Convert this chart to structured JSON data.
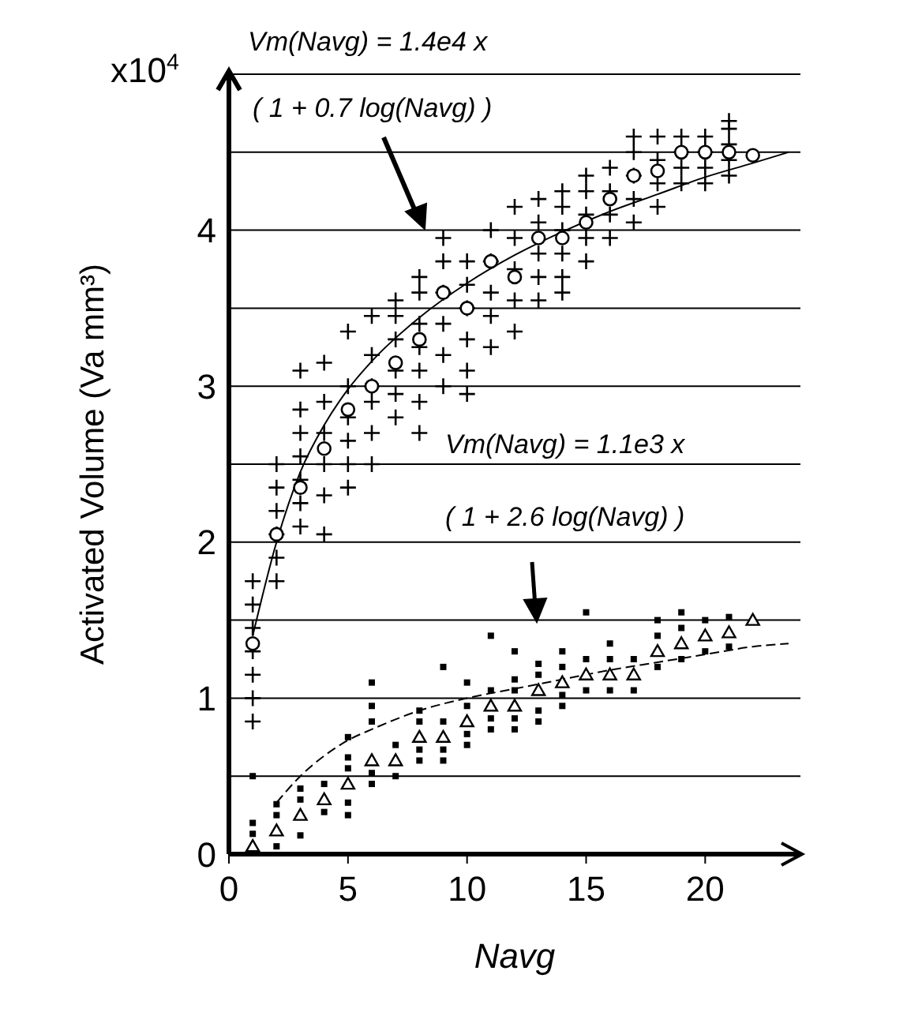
{
  "chart_data": {
    "type": "scatter",
    "xlabel": "Navg",
    "ylabel": "Activated Volume (Va mm³)",
    "annotations": [
      "x10$^{4}$",
      "Vm(Navg) = 1.4e4 x",
      "( 1 + 0.7 log(Navg) )",
      "Vm(Navg) = 1.1e3 x",
      "( 1 + 2.6 log(Navg) )"
    ],
    "xlim": [
      0,
      24
    ],
    "xticks": [
      0,
      5,
      10,
      15,
      20
    ],
    "ylim": [
      0,
      5
    ],
    "yticks": [
      0,
      {
        "value": 0.5,
        "label": null
      },
      1,
      {
        "value": 1.5,
        "label": null
      },
      2,
      {
        "value": 2.5,
        "label": null
      },
      3,
      {
        "value": 3.5,
        "label": null
      },
      4,
      {
        "value": 4.5,
        "label": null
      }
    ],
    "grid": "y",
    "legend": false,
    "series": [
      {
        "marker": "cross",
        "color": "#000000",
        "x": [
          1,
          1,
          1,
          1,
          1,
          1,
          1,
          2,
          2,
          2,
          2,
          2,
          2,
          3,
          3,
          3,
          3,
          3,
          3,
          3,
          4,
          4,
          4,
          4,
          4,
          4,
          5,
          5,
          5,
          5,
          5,
          5,
          6,
          6,
          6,
          6,
          6,
          6,
          7,
          7,
          7,
          7,
          7,
          7,
          8,
          8,
          8,
          8,
          8,
          8,
          8,
          9,
          9,
          9,
          9,
          9,
          9,
          10,
          10,
          10,
          10,
          10,
          10,
          11,
          11,
          11,
          11,
          11,
          12,
          12,
          12,
          12,
          12,
          13,
          13,
          13,
          13,
          13,
          14,
          14,
          14,
          14,
          14,
          14,
          15,
          15,
          15,
          15,
          15,
          16,
          16,
          16,
          16,
          17,
          17,
          17,
          17,
          17,
          18,
          18,
          18,
          18,
          19,
          19,
          19,
          19,
          20,
          20,
          20,
          20,
          21,
          21,
          21,
          21,
          21
        ],
        "values": [
          0.85,
          1.0,
          1.15,
          1.3,
          1.45,
          1.6,
          1.75,
          1.75,
          1.9,
          2.05,
          2.2,
          2.35,
          2.5,
          2.1,
          2.25,
          2.4,
          2.55,
          2.7,
          2.85,
          3.1,
          2.05,
          2.3,
          2.5,
          2.7,
          2.9,
          3.15,
          2.35,
          2.5,
          2.65,
          2.8,
          3.0,
          3.35,
          2.5,
          2.7,
          2.9,
          3.0,
          3.2,
          3.45,
          2.8,
          2.95,
          3.1,
          3.3,
          3.45,
          3.55,
          2.7,
          2.9,
          3.1,
          3.25,
          3.4,
          3.6,
          3.7,
          3.0,
          3.2,
          3.4,
          3.6,
          3.8,
          3.95,
          2.95,
          3.1,
          3.3,
          3.5,
          3.65,
          3.8,
          3.25,
          3.45,
          3.6,
          3.8,
          4.0,
          3.35,
          3.55,
          3.75,
          3.95,
          4.15,
          3.55,
          3.7,
          3.85,
          4.05,
          4.2,
          3.6,
          3.7,
          3.85,
          4.0,
          4.15,
          4.25,
          3.8,
          3.95,
          4.1,
          4.25,
          4.35,
          3.95,
          4.1,
          4.25,
          4.4,
          4.05,
          4.2,
          4.35,
          4.5,
          4.6,
          4.15,
          4.3,
          4.45,
          4.6,
          4.3,
          4.4,
          4.5,
          4.6,
          4.3,
          4.4,
          4.5,
          4.6,
          4.35,
          4.45,
          4.55,
          4.65,
          4.7
        ]
      },
      {
        "marker": "circle",
        "color": "#000000",
        "x": [
          1,
          2,
          3,
          4,
          5,
          6,
          7,
          8,
          9,
          10,
          11,
          12,
          13,
          14,
          15,
          16,
          17,
          18,
          19,
          20,
          21,
          22
        ],
        "values": [
          1.35,
          2.05,
          2.35,
          2.6,
          2.85,
          3.0,
          3.15,
          3.3,
          3.6,
          3.5,
          3.8,
          3.7,
          3.95,
          3.95,
          4.05,
          4.2,
          4.35,
          4.38,
          4.5,
          4.5,
          4.5,
          4.48
        ]
      },
      {
        "type": "line",
        "marker": "none",
        "line_style": "solid",
        "color": "#000000",
        "x": [
          1,
          2,
          3,
          4,
          5,
          6,
          8,
          10,
          12,
          14,
          16,
          18,
          20,
          22,
          23.5
        ],
        "values": [
          1.4,
          2.0,
          2.45,
          2.75,
          2.98,
          3.16,
          3.44,
          3.66,
          3.84,
          3.99,
          4.12,
          4.23,
          4.34,
          4.43,
          4.5
        ]
      },
      {
        "marker": "square",
        "color": "#000000",
        "x": [
          1,
          1,
          1,
          2,
          2,
          2,
          3,
          3,
          3,
          4,
          4,
          5,
          5,
          5,
          5,
          5,
          6,
          6,
          6,
          6,
          6,
          7,
          7,
          8,
          8,
          8,
          8,
          9,
          9,
          9,
          9,
          10,
          10,
          10,
          10,
          11,
          11,
          11,
          11,
          12,
          12,
          12,
          12,
          12,
          13,
          13,
          13,
          13,
          14,
          14,
          14,
          14,
          15,
          15,
          15,
          16,
          16,
          16,
          17,
          17,
          18,
          18,
          18,
          19,
          19,
          19,
          20,
          20,
          21,
          21
        ],
        "values": [
          0.13,
          0.2,
          0.5,
          0.05,
          0.25,
          0.32,
          0.12,
          0.35,
          0.42,
          0.27,
          0.45,
          0.25,
          0.33,
          0.55,
          0.62,
          0.75,
          0.45,
          0.52,
          0.85,
          0.95,
          1.1,
          0.5,
          0.7,
          0.6,
          0.67,
          0.85,
          0.92,
          0.6,
          0.67,
          0.85,
          1.2,
          0.7,
          0.77,
          0.95,
          1.1,
          0.8,
          0.87,
          1.05,
          1.4,
          0.8,
          0.87,
          1.05,
          1.12,
          1.3,
          0.85,
          0.92,
          1.15,
          1.22,
          0.95,
          1.02,
          1.2,
          1.3,
          1.05,
          1.25,
          1.55,
          1.05,
          1.25,
          1.35,
          1.05,
          1.25,
          1.2,
          1.4,
          1.5,
          1.25,
          1.45,
          1.55,
          1.3,
          1.5,
          1.33,
          1.52
        ]
      },
      {
        "marker": "triangle",
        "color": "#000000",
        "x": [
          1,
          2,
          3,
          4,
          5,
          6,
          7,
          8,
          9,
          10,
          11,
          12,
          13,
          14,
          15,
          16,
          17,
          18,
          19,
          20,
          21,
          22
        ],
        "values": [
          0.05,
          0.15,
          0.25,
          0.35,
          0.45,
          0.6,
          0.6,
          0.75,
          0.75,
          0.85,
          0.95,
          0.95,
          1.05,
          1.1,
          1.15,
          1.15,
          1.15,
          1.3,
          1.35,
          1.4,
          1.42,
          1.5
        ]
      },
      {
        "type": "line",
        "marker": "none",
        "line_style": "dashed",
        "color": "#000000",
        "x": [
          2,
          3,
          4,
          5,
          6,
          8,
          10,
          12,
          14,
          16,
          18,
          20,
          22,
          23.5
        ],
        "values": [
          0.33,
          0.5,
          0.63,
          0.73,
          0.8,
          0.92,
          1.0,
          1.06,
          1.12,
          1.18,
          1.23,
          1.28,
          1.33,
          1.35
        ]
      }
    ]
  }
}
